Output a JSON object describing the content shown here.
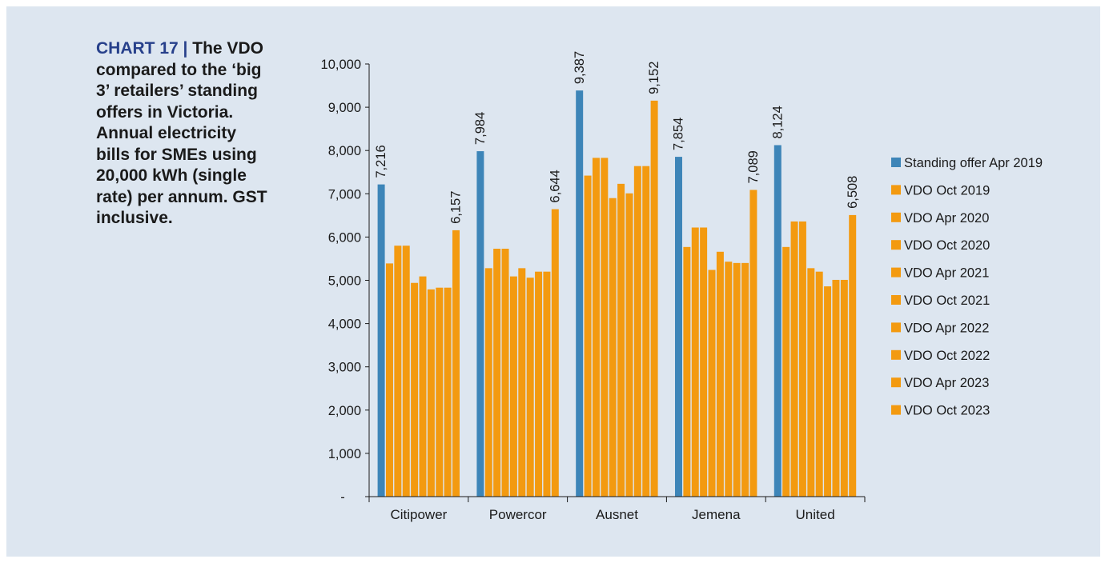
{
  "caption": {
    "label": "CHART 17",
    "separator": "|",
    "text": "The VDO compared to the ‘big 3’ retailers’ standing offers in Victoria. Annual electricity bills for SMEs using 20,000 kWh (single rate) per annum. GST inclusive."
  },
  "colors": {
    "standing": "#3d85b8",
    "vdo": "#f39a10",
    "panel": "#dde6f0",
    "caption_label": "#27408b"
  },
  "chart_data": {
    "type": "bar",
    "categories": [
      "Citipower",
      "Powercor",
      "Ausnet",
      "Jemena",
      "United"
    ],
    "ylim": [
      0,
      10000
    ],
    "yticks": [
      0,
      1000,
      2000,
      3000,
      4000,
      5000,
      6000,
      7000,
      8000,
      9000,
      10000
    ],
    "ytick_labels": [
      "-",
      "1,000",
      "2,000",
      "3,000",
      "4,000",
      "5,000",
      "6,000",
      "7,000",
      "8,000",
      "9,000",
      "10,000"
    ],
    "legend_position": "right",
    "series": [
      {
        "name": "Standing offer Apr 2019",
        "color": "#3d85b8",
        "values": [
          7216,
          7984,
          9387,
          7854,
          8124
        ],
        "labels": [
          "7,216",
          "7,984",
          "9,387",
          "7,854",
          "8,124"
        ]
      },
      {
        "name": "VDO Oct 2019",
        "color": "#f39a10",
        "values": [
          5390,
          5280,
          7420,
          5770,
          5770
        ]
      },
      {
        "name": "VDO Apr 2020",
        "color": "#f39a10",
        "values": [
          5800,
          5730,
          7830,
          6220,
          6360
        ]
      },
      {
        "name": "VDO Oct 2020",
        "color": "#f39a10",
        "values": [
          5800,
          5730,
          7830,
          6220,
          6360
        ]
      },
      {
        "name": "VDO Apr 2021",
        "color": "#f39a10",
        "values": [
          4940,
          5090,
          6900,
          5240,
          5280
        ]
      },
      {
        "name": "VDO Oct 2021",
        "color": "#f39a10",
        "values": [
          5090,
          5280,
          7230,
          5660,
          5200
        ]
      },
      {
        "name": "VDO Apr 2022",
        "color": "#f39a10",
        "values": [
          4790,
          5060,
          7010,
          5430,
          4860
        ]
      },
      {
        "name": "VDO Oct 2022",
        "color": "#f39a10",
        "values": [
          4830,
          5200,
          7640,
          5400,
          5010
        ]
      },
      {
        "name": "VDO Apr 2023",
        "color": "#f39a10",
        "values": [
          4830,
          5200,
          7640,
          5400,
          5010
        ]
      },
      {
        "name": "VDO Oct 2023",
        "color": "#f39a10",
        "values": [
          6157,
          6644,
          9152,
          7089,
          6508
        ],
        "labels": [
          "6,157",
          "6,644",
          "9,152",
          "7,089",
          "6,508"
        ]
      }
    ]
  }
}
